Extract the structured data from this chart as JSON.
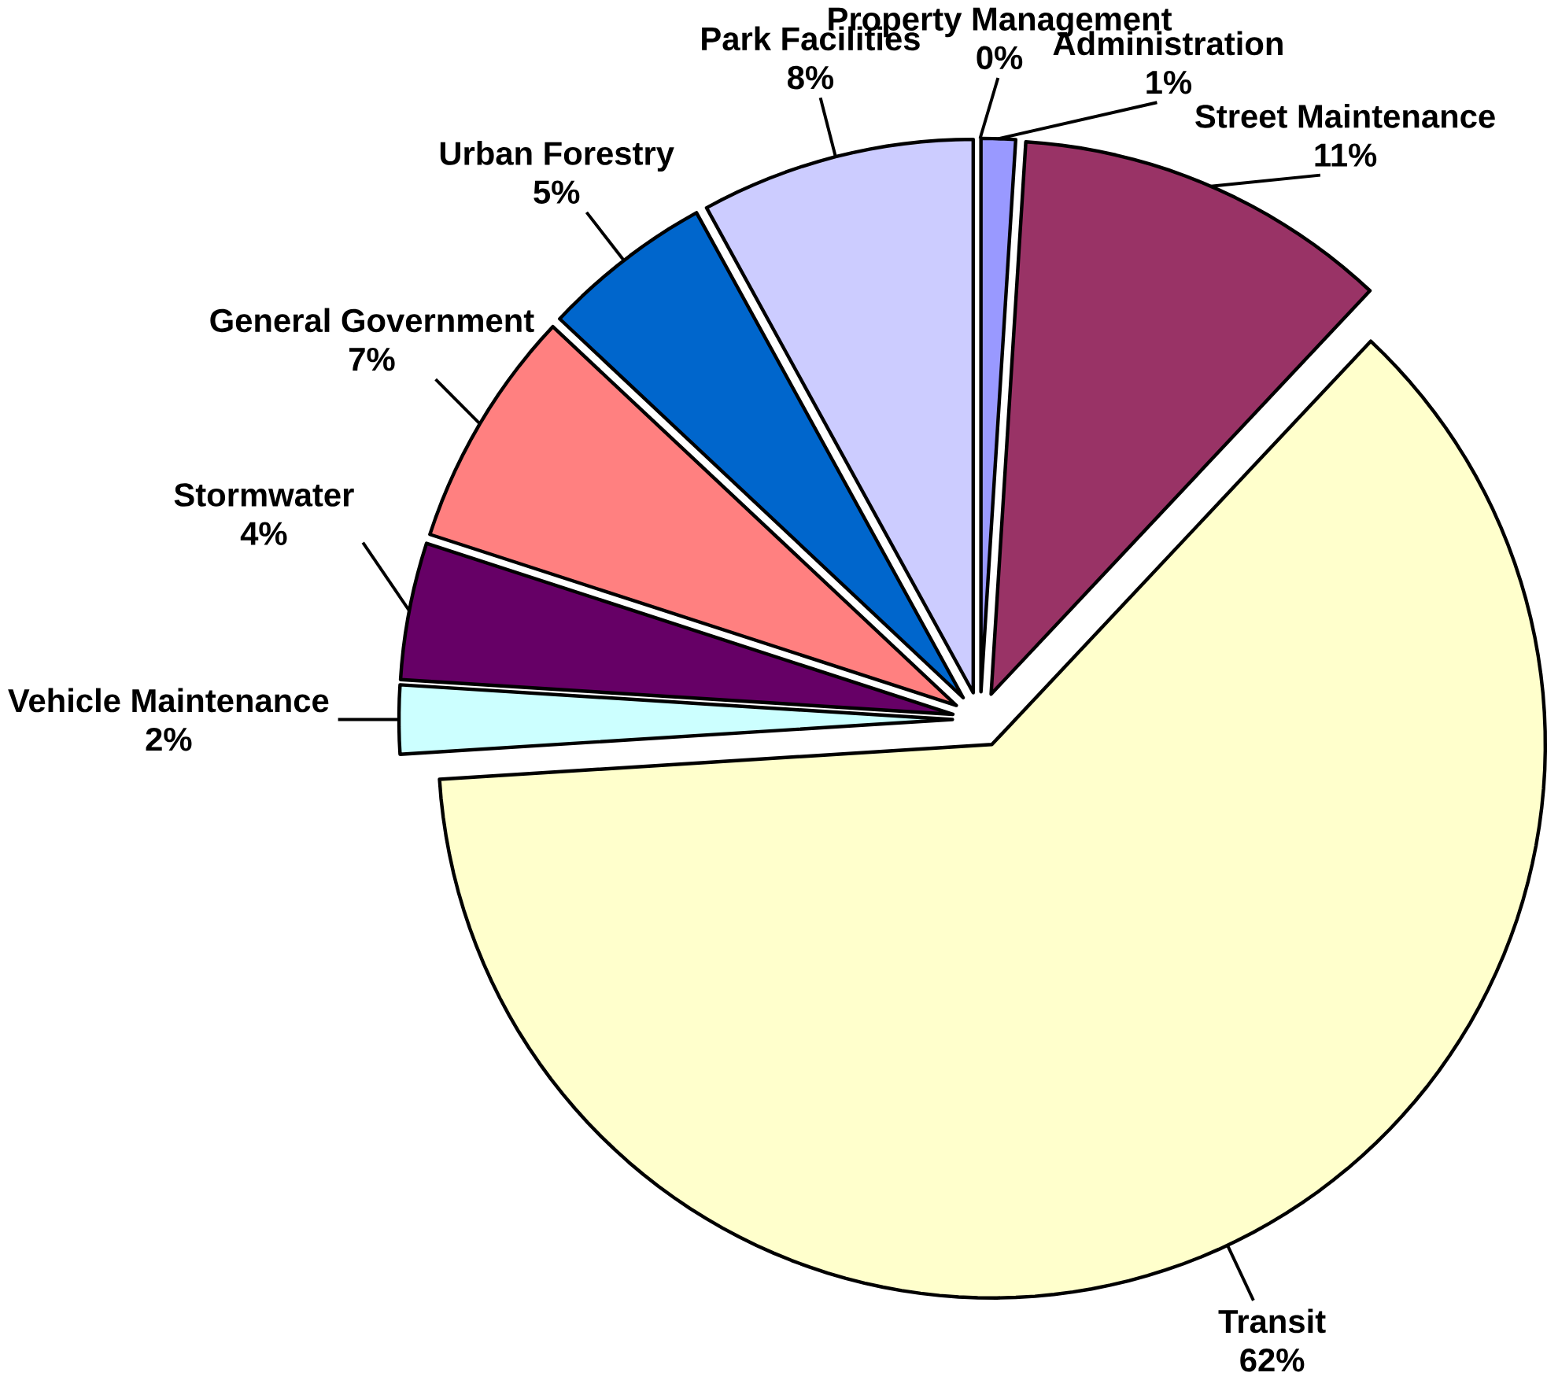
{
  "chart_data": {
    "type": "pie",
    "categories": [
      "Administration",
      "Street Maintenance",
      "Transit",
      "Vehicle Maintenance",
      "Stormwater",
      "General Government",
      "Urban Forestry",
      "Park Facilities",
      "Property Management"
    ],
    "values": [
      1,
      11,
      62,
      2,
      4,
      7,
      5,
      8,
      0
    ],
    "value_labels": [
      "1%",
      "11%",
      "62%",
      "2%",
      "4%",
      "7%",
      "5%",
      "8%",
      "0%"
    ],
    "colors": [
      "#9999ff",
      "#993366",
      "#ffffcc",
      "#ccffff",
      "#660066",
      "#ff8080",
      "#0066cc",
      "#ccccff",
      "#000080"
    ]
  }
}
